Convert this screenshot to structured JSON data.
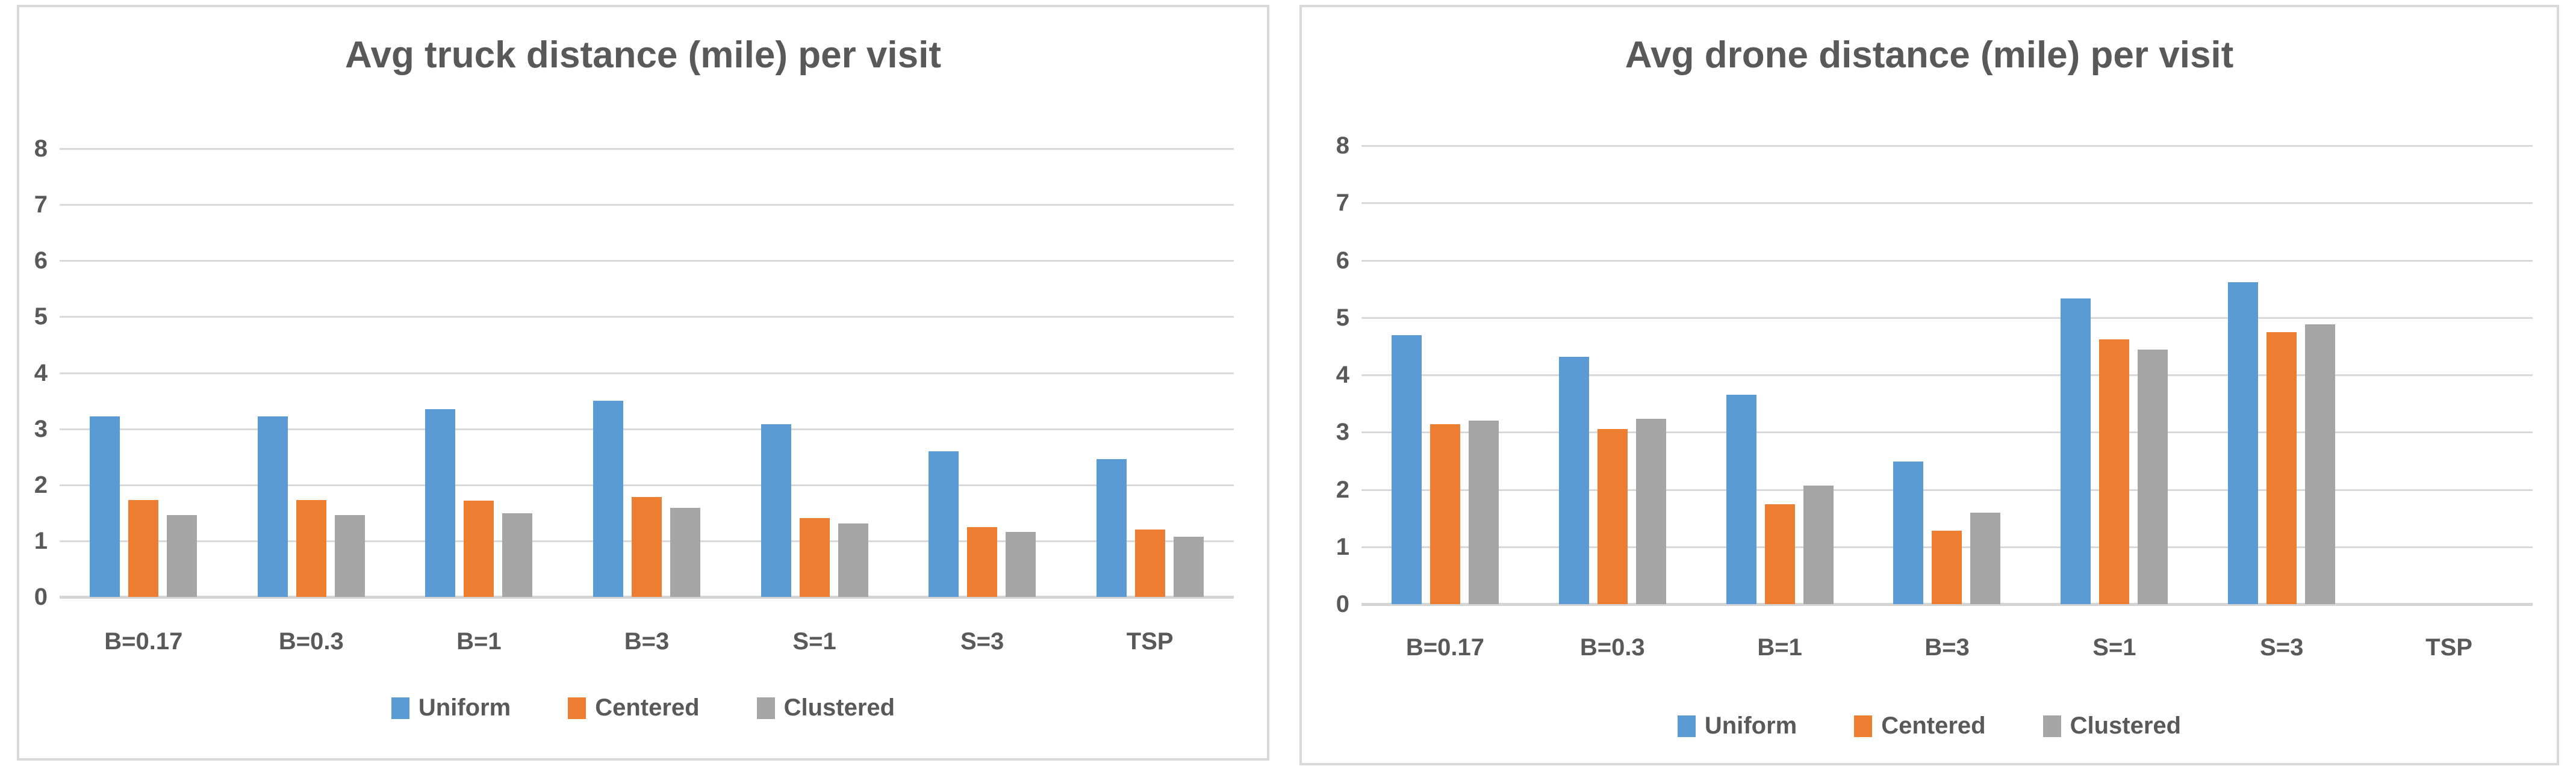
{
  "colors": {
    "uniform": "#5B9BD5",
    "centered": "#ED7D31",
    "clustered": "#A5A5A5",
    "text": "#595959",
    "grid": "#D9D9D9",
    "panel_border": "#D9D9D9",
    "background": "#FFFFFF"
  },
  "chart_data": [
    {
      "type": "bar",
      "title": "Avg truck distance (mile) per visit",
      "categories": [
        "B=0.17",
        "B=0.3",
        "B=1",
        "B=3",
        "S=1",
        "S=3",
        "TSP"
      ],
      "series": [
        {
          "name": "Uniform",
          "color": "#5B9BD5",
          "values": [
            3.22,
            3.22,
            3.35,
            3.5,
            3.08,
            2.6,
            2.46
          ]
        },
        {
          "name": "Centered",
          "color": "#ED7D31",
          "values": [
            1.73,
            1.73,
            1.72,
            1.78,
            1.41,
            1.25,
            1.2
          ]
        },
        {
          "name": "Clustered",
          "color": "#A5A5A5",
          "values": [
            1.46,
            1.46,
            1.49,
            1.59,
            1.31,
            1.16,
            1.07
          ]
        }
      ],
      "xlabel": "",
      "ylabel": "",
      "ylim": [
        0,
        8
      ],
      "yticks": [
        8,
        7,
        6,
        5,
        4,
        3,
        2,
        1,
        0
      ],
      "grid": true,
      "legend_position": "bottom",
      "legend_labels": [
        "Uniform",
        "Centered",
        "Clustered"
      ]
    },
    {
      "type": "bar",
      "title": "Avg drone distance (mile) per visit",
      "categories": [
        "B=0.17",
        "B=0.3",
        "B=1",
        "B=3",
        "S=1",
        "S=3",
        "TSP"
      ],
      "series": [
        {
          "name": "Uniform",
          "color": "#5B9BD5",
          "values": [
            4.69,
            4.31,
            3.65,
            2.49,
            5.33,
            5.62,
            0
          ]
        },
        {
          "name": "Centered",
          "color": "#ED7D31",
          "values": [
            3.14,
            3.05,
            1.74,
            1.28,
            4.62,
            4.75,
            0
          ]
        },
        {
          "name": "Clustered",
          "color": "#A5A5A5",
          "values": [
            3.2,
            3.23,
            2.07,
            1.6,
            4.44,
            4.88,
            0
          ]
        }
      ],
      "xlabel": "",
      "ylabel": "",
      "ylim": [
        0,
        8
      ],
      "yticks": [
        8,
        7,
        6,
        5,
        4,
        3,
        2,
        1,
        0
      ],
      "grid": true,
      "legend_position": "bottom",
      "legend_labels": [
        "Uniform",
        "Centered",
        "Clustered"
      ]
    }
  ]
}
